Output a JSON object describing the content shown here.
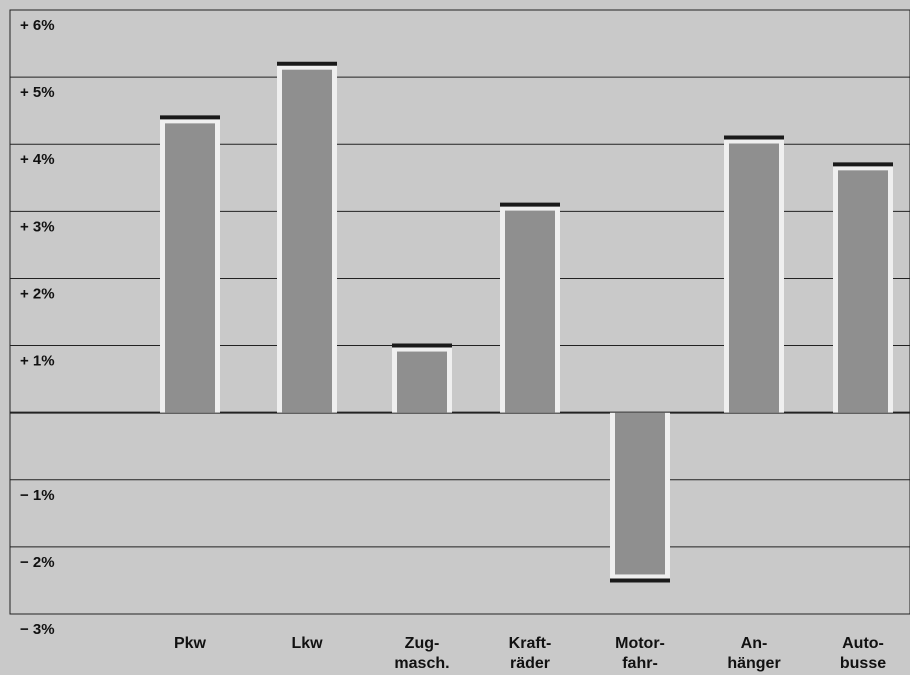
{
  "chart_data": {
    "type": "bar",
    "categories": [
      [
        "Pkw"
      ],
      [
        "Lkw"
      ],
      [
        "Zug-",
        "masch."
      ],
      [
        "Kraft-",
        "räder"
      ],
      [
        "Motor-",
        "fahr-"
      ],
      [
        "An-",
        "hänger"
      ],
      [
        "Auto-",
        "busse"
      ]
    ],
    "values": [
      4.4,
      5.2,
      1.0,
      3.1,
      -2.5,
      4.1,
      3.7
    ],
    "ylim": [
      -3.0,
      6.0
    ],
    "yticks": [
      6,
      5,
      4,
      3,
      2,
      1,
      -1,
      -2,
      -3
    ],
    "ytick_labels": [
      "+ 6%",
      "+ 5%",
      "+ 4%",
      "+ 3%",
      "+ 2%",
      "+ 1%",
      "− 1%",
      "− 2%",
      "− 3%"
    ],
    "grid": true,
    "legend": false,
    "colors": {
      "background": "#c9c9c9",
      "bar_fill": "#8f8f8f",
      "bar_edge": "#efefef",
      "bar_cap": "#1a1a1a",
      "grid": "#222222"
    }
  }
}
